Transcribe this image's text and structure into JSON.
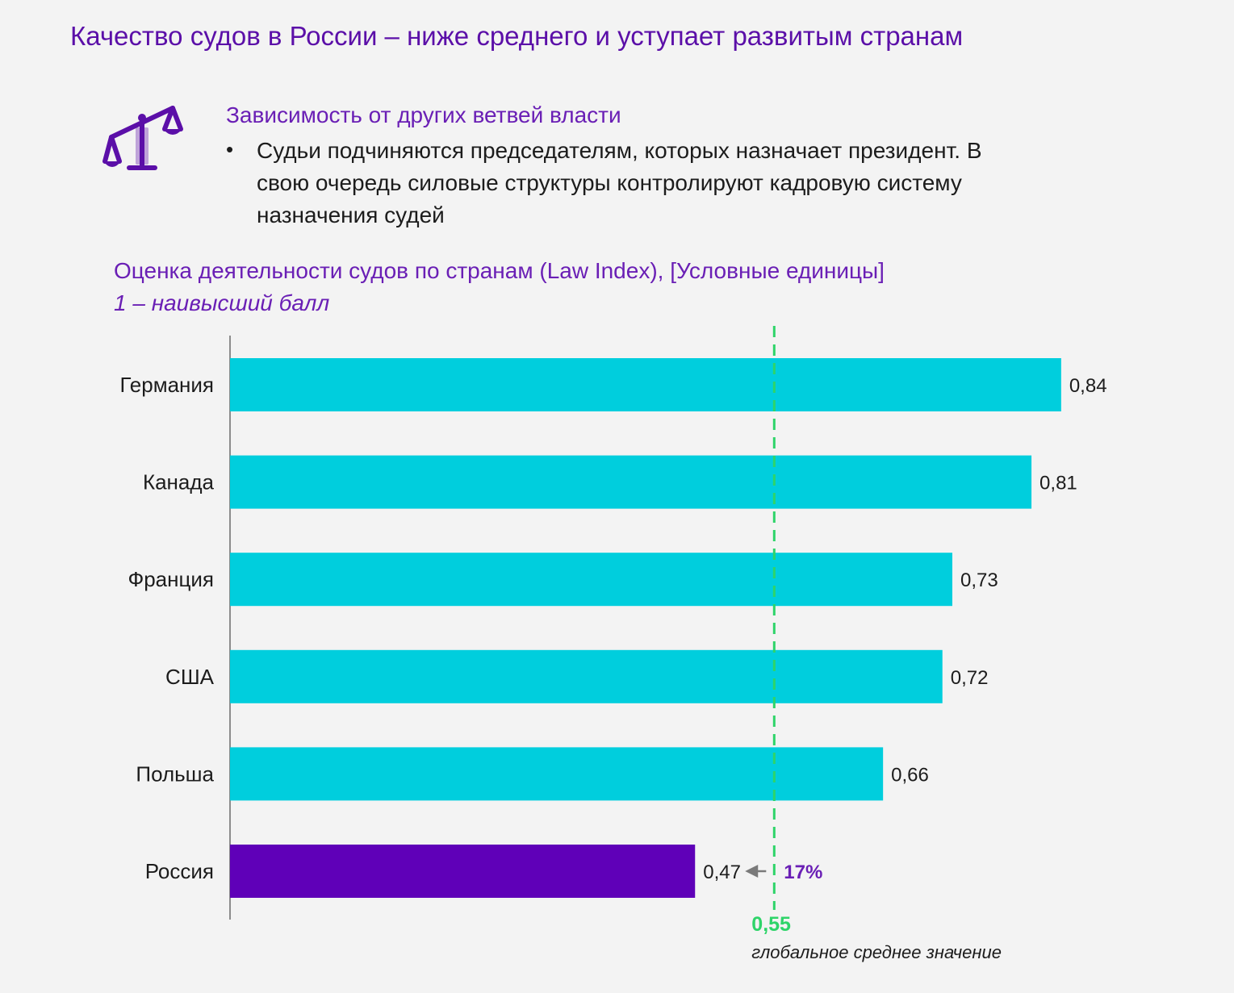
{
  "page": {
    "title": "Качество судов в России – ниже среднего и уступает  развитым странам"
  },
  "dependency": {
    "heading": "Зависимость от других ветвей власти",
    "bullet": "Судьи подчиняются председателям, которых назначает президент. В свою очередь силовые структуры контролируют кадровую систему назначения судей",
    "icon": "scales-of-justice-icon"
  },
  "chart_data": {
    "type": "bar",
    "orientation": "horizontal",
    "title": "Оценка деятельности судов по странам (Law Index), [Условные единицы]",
    "subtitle": "1 – наивысший балл",
    "categories": [
      "Германия",
      "Канада",
      "Франция",
      "США",
      "Польша",
      "Россия"
    ],
    "values": [
      0.84,
      0.81,
      0.73,
      0.72,
      0.66,
      0.47
    ],
    "value_labels": [
      "0,84",
      "0,81",
      "0,73",
      "0,72",
      "0,66",
      "0,47"
    ],
    "highlight_category": "Россия",
    "xlim": [
      0,
      1
    ],
    "grid": false,
    "reference_line": {
      "value": 0.55,
      "value_label": "0,55",
      "label": "глобальное среднее значение"
    },
    "gap_annotation": "17%",
    "colors": {
      "bar": "#00cedd",
      "highlight_bar": "#5f00b8",
      "reference_line": "#2ed469",
      "gap_annotation": "#6a1fb5",
      "arrow": "#7a7a7a"
    }
  }
}
